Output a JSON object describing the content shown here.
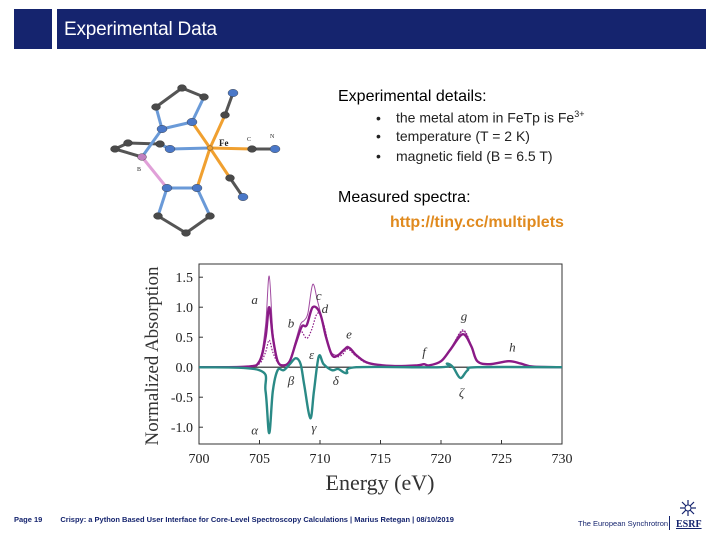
{
  "header": {
    "title": "Experimental Data"
  },
  "molecule": {
    "labels": {
      "fe": "Fe",
      "c": "C",
      "n": "N",
      "b": "B"
    }
  },
  "details": {
    "heading": "Experimental details:",
    "bullets": [
      {
        "text": "the metal atom in FeTp is Fe",
        "sup": "3+"
      },
      {
        "text": "temperature (T = 2 K)"
      },
      {
        "text": "magnetic field (B = 6.5 T)"
      }
    ],
    "bullet_char": "•"
  },
  "spectra": {
    "heading": "Measured spectra:",
    "link": "http://tiny.cc/multiplets"
  },
  "footer": {
    "page": "Page 19",
    "text": "Crispy: a Python Based User Interface for Core-Level Spectroscopy Calculations | Marius Retegan | 08/10/2019",
    "org": "The European Synchrotron",
    "logo": "ESRF"
  },
  "colors": {
    "header": "#15246e",
    "link": "#e08a1e",
    "xmcd_sum": "#8a1a86",
    "xmcd_diff": "#2a8a86"
  },
  "chart_data": {
    "type": "line",
    "xlabel": "Energy (eV)",
    "ylabel": "Normalized Absorption",
    "xlim": [
      700,
      730
    ],
    "ylim": [
      -1.28,
      1.72
    ],
    "xticks": [
      700,
      705,
      710,
      715,
      720,
      725,
      730
    ],
    "yticks": [
      -1.0,
      -0.5,
      0.0,
      0.5,
      1.0,
      1.5
    ],
    "ytick_labels": [
      "-1.0",
      "-0.5",
      "0.0",
      "0.5",
      "1.0",
      "1.5"
    ],
    "grid": false,
    "series": [
      {
        "style": "thin",
        "color": "#a04aa0",
        "x": [
          700,
          704,
          705,
          705.5,
          705.8,
          706.1,
          706.5,
          707,
          707.5,
          708,
          708.4,
          708.7,
          709,
          709.4,
          709.8,
          710.3,
          710.8,
          711.3,
          711.8,
          712.3,
          713,
          714,
          716,
          718,
          718.6,
          719,
          720,
          720.8,
          721.8,
          722.5,
          723,
          724,
          725.6,
          726.6,
          727.6,
          730
        ],
        "y": [
          0,
          0.01,
          0.1,
          0.7,
          1.52,
          0.6,
          0.12,
          0.04,
          0.12,
          0.45,
          0.72,
          0.78,
          0.9,
          1.38,
          1.1,
          0.7,
          0.3,
          0.2,
          0.25,
          0.35,
          0.2,
          0.07,
          0.02,
          0.03,
          0.06,
          0.03,
          0.1,
          0.32,
          0.6,
          0.37,
          0.11,
          0.05,
          0.11,
          0.06,
          0.01,
          0
        ]
      },
      {
        "style": "dotted",
        "color": "#8a1a86",
        "x": [
          700,
          704,
          705,
          705.5,
          705.8,
          706.1,
          706.5,
          707,
          707.5,
          708,
          708.4,
          708.9,
          709.3,
          709.8,
          710.3,
          710.8,
          711.3,
          711.8,
          712.3,
          713,
          714,
          716,
          718,
          718.6,
          719,
          720,
          720.8,
          721.8,
          722.5,
          723,
          724,
          725.6,
          726.6,
          727.6,
          730
        ],
        "y": [
          0,
          0.01,
          0.06,
          0.25,
          0.45,
          0.25,
          0.08,
          0.03,
          0.1,
          0.4,
          0.6,
          0.48,
          0.62,
          0.9,
          0.72,
          0.3,
          0.18,
          0.2,
          0.3,
          0.18,
          0.06,
          0.02,
          0.03,
          0.05,
          0.03,
          0.1,
          0.3,
          0.62,
          0.36,
          0.1,
          0.05,
          0.1,
          0.06,
          0.01,
          0
        ]
      },
      {
        "style": "thick",
        "color": "#8a1a86",
        "x": [
          700,
          704,
          705,
          705.5,
          705.8,
          706.1,
          706.5,
          707,
          707.5,
          708,
          708.5,
          708.9,
          709.4,
          710,
          710.5,
          711,
          711.5,
          712.3,
          713,
          714,
          716,
          718,
          718.6,
          719,
          720,
          720.8,
          721.8,
          722.5,
          723,
          724,
          725.6,
          726.6,
          727.6,
          730
        ],
        "y": [
          0,
          0.01,
          0.1,
          0.5,
          1.0,
          0.5,
          0.1,
          0.03,
          0.1,
          0.4,
          0.68,
          0.7,
          1.0,
          0.9,
          0.5,
          0.2,
          0.2,
          0.33,
          0.2,
          0.07,
          0.02,
          0.03,
          0.05,
          0.03,
          0.1,
          0.3,
          0.55,
          0.35,
          0.1,
          0.05,
          0.1,
          0.06,
          0.01,
          0
        ]
      },
      {
        "style": "thick",
        "color": "#2a8a86",
        "x": [
          700,
          705,
          705.5,
          705.8,
          706.1,
          706.5,
          707,
          707.5,
          708,
          708.4,
          708.7,
          709.2,
          709.5,
          709.9,
          710.3,
          711,
          711.5,
          712.2,
          713,
          720,
          720.5,
          721,
          721.6,
          722.2,
          723,
          730
        ],
        "y": [
          0,
          -0.05,
          -0.4,
          -1.1,
          -0.4,
          -0.05,
          -0.05,
          0.05,
          0.15,
          0.05,
          -0.3,
          -0.85,
          -0.4,
          0.18,
          0.05,
          -0.05,
          -0.03,
          -0.1,
          0,
          0,
          0.06,
          0,
          -0.18,
          -0.05,
          0,
          0
        ]
      }
    ],
    "annotations": [
      {
        "text": "a",
        "x": 704.6,
        "y": 1.05
      },
      {
        "text": "b",
        "x": 707.6,
        "y": 0.66
      },
      {
        "text": "c",
        "x": 709.9,
        "y": 1.12
      },
      {
        "text": "d",
        "x": 710.4,
        "y": 0.9
      },
      {
        "text": "e",
        "x": 712.4,
        "y": 0.48
      },
      {
        "text": "f",
        "x": 718.6,
        "y": 0.18
      },
      {
        "text": "g",
        "x": 721.9,
        "y": 0.78
      },
      {
        "text": "h",
        "x": 725.9,
        "y": 0.26
      },
      {
        "text": "α",
        "x": 704.6,
        "y": -1.12
      },
      {
        "text": "β",
        "x": 707.6,
        "y": -0.3
      },
      {
        "text": "γ",
        "x": 709.5,
        "y": -1.08
      },
      {
        "text": "δ",
        "x": 711.3,
        "y": -0.3
      },
      {
        "text": "ε",
        "x": 709.3,
        "y": 0.14
      },
      {
        "text": "ζ",
        "x": 721.7,
        "y": -0.5
      }
    ]
  }
}
